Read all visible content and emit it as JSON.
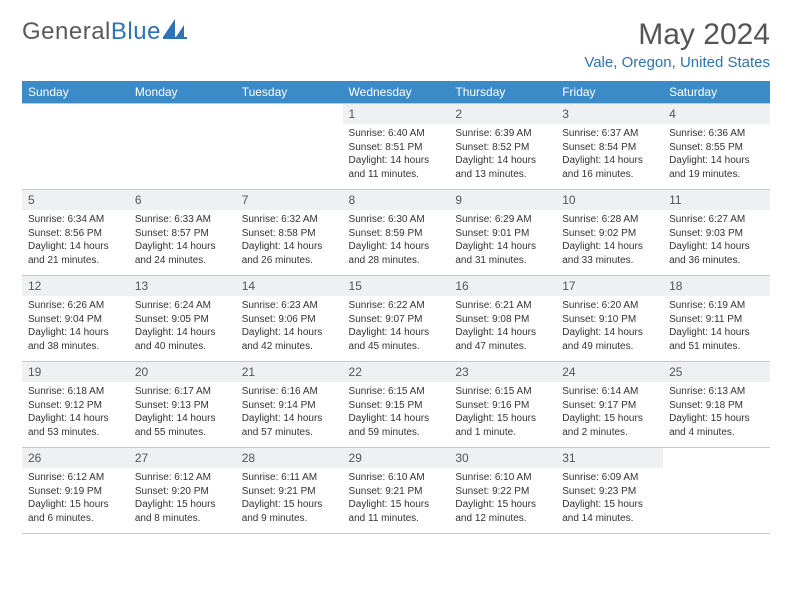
{
  "brand": {
    "word1": "General",
    "word2": "Blue"
  },
  "title": "May 2024",
  "location": "Vale, Oregon, United States",
  "accent_color": "#3b8bc9",
  "text_color": "#333333",
  "daynum_bg": "#eef0f2",
  "weekdays": [
    "Sunday",
    "Monday",
    "Tuesday",
    "Wednesday",
    "Thursday",
    "Friday",
    "Saturday"
  ],
  "weeks": [
    [
      null,
      null,
      null,
      {
        "n": "1",
        "sr": "6:40 AM",
        "ss": "8:51 PM",
        "dl": "14 hours and 11 minutes."
      },
      {
        "n": "2",
        "sr": "6:39 AM",
        "ss": "8:52 PM",
        "dl": "14 hours and 13 minutes."
      },
      {
        "n": "3",
        "sr": "6:37 AM",
        "ss": "8:54 PM",
        "dl": "14 hours and 16 minutes."
      },
      {
        "n": "4",
        "sr": "6:36 AM",
        "ss": "8:55 PM",
        "dl": "14 hours and 19 minutes."
      }
    ],
    [
      {
        "n": "5",
        "sr": "6:34 AM",
        "ss": "8:56 PM",
        "dl": "14 hours and 21 minutes."
      },
      {
        "n": "6",
        "sr": "6:33 AM",
        "ss": "8:57 PM",
        "dl": "14 hours and 24 minutes."
      },
      {
        "n": "7",
        "sr": "6:32 AM",
        "ss": "8:58 PM",
        "dl": "14 hours and 26 minutes."
      },
      {
        "n": "8",
        "sr": "6:30 AM",
        "ss": "8:59 PM",
        "dl": "14 hours and 28 minutes."
      },
      {
        "n": "9",
        "sr": "6:29 AM",
        "ss": "9:01 PM",
        "dl": "14 hours and 31 minutes."
      },
      {
        "n": "10",
        "sr": "6:28 AM",
        "ss": "9:02 PM",
        "dl": "14 hours and 33 minutes."
      },
      {
        "n": "11",
        "sr": "6:27 AM",
        "ss": "9:03 PM",
        "dl": "14 hours and 36 minutes."
      }
    ],
    [
      {
        "n": "12",
        "sr": "6:26 AM",
        "ss": "9:04 PM",
        "dl": "14 hours and 38 minutes."
      },
      {
        "n": "13",
        "sr": "6:24 AM",
        "ss": "9:05 PM",
        "dl": "14 hours and 40 minutes."
      },
      {
        "n": "14",
        "sr": "6:23 AM",
        "ss": "9:06 PM",
        "dl": "14 hours and 42 minutes."
      },
      {
        "n": "15",
        "sr": "6:22 AM",
        "ss": "9:07 PM",
        "dl": "14 hours and 45 minutes."
      },
      {
        "n": "16",
        "sr": "6:21 AM",
        "ss": "9:08 PM",
        "dl": "14 hours and 47 minutes."
      },
      {
        "n": "17",
        "sr": "6:20 AM",
        "ss": "9:10 PM",
        "dl": "14 hours and 49 minutes."
      },
      {
        "n": "18",
        "sr": "6:19 AM",
        "ss": "9:11 PM",
        "dl": "14 hours and 51 minutes."
      }
    ],
    [
      {
        "n": "19",
        "sr": "6:18 AM",
        "ss": "9:12 PM",
        "dl": "14 hours and 53 minutes."
      },
      {
        "n": "20",
        "sr": "6:17 AM",
        "ss": "9:13 PM",
        "dl": "14 hours and 55 minutes."
      },
      {
        "n": "21",
        "sr": "6:16 AM",
        "ss": "9:14 PM",
        "dl": "14 hours and 57 minutes."
      },
      {
        "n": "22",
        "sr": "6:15 AM",
        "ss": "9:15 PM",
        "dl": "14 hours and 59 minutes."
      },
      {
        "n": "23",
        "sr": "6:15 AM",
        "ss": "9:16 PM",
        "dl": "15 hours and 1 minute."
      },
      {
        "n": "24",
        "sr": "6:14 AM",
        "ss": "9:17 PM",
        "dl": "15 hours and 2 minutes."
      },
      {
        "n": "25",
        "sr": "6:13 AM",
        "ss": "9:18 PM",
        "dl": "15 hours and 4 minutes."
      }
    ],
    [
      {
        "n": "26",
        "sr": "6:12 AM",
        "ss": "9:19 PM",
        "dl": "15 hours and 6 minutes."
      },
      {
        "n": "27",
        "sr": "6:12 AM",
        "ss": "9:20 PM",
        "dl": "15 hours and 8 minutes."
      },
      {
        "n": "28",
        "sr": "6:11 AM",
        "ss": "9:21 PM",
        "dl": "15 hours and 9 minutes."
      },
      {
        "n": "29",
        "sr": "6:10 AM",
        "ss": "9:21 PM",
        "dl": "15 hours and 11 minutes."
      },
      {
        "n": "30",
        "sr": "6:10 AM",
        "ss": "9:22 PM",
        "dl": "15 hours and 12 minutes."
      },
      {
        "n": "31",
        "sr": "6:09 AM",
        "ss": "9:23 PM",
        "dl": "15 hours and 14 minutes."
      },
      null
    ]
  ]
}
